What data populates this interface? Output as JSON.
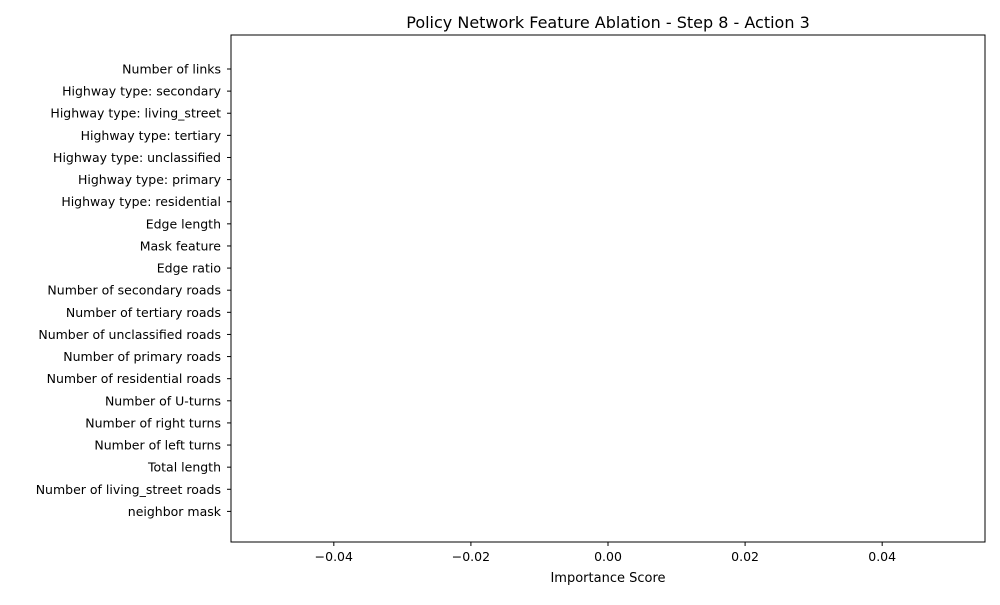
{
  "chart_data": {
    "type": "bar",
    "orientation": "horizontal",
    "title": "Policy Network Feature Ablation - Step 8 - Action 3",
    "xlabel": "Importance Score",
    "ylabel": "",
    "categories": [
      "Number of links",
      "Highway type: secondary",
      "Highway type: living_street",
      "Highway type: tertiary",
      "Highway type: unclassified",
      "Highway type: primary",
      "Highway type: residential",
      "Edge length",
      "Mask feature",
      "Edge ratio",
      "Number of secondary roads",
      "Number of tertiary roads",
      "Number of unclassified roads",
      "Number of primary roads",
      "Number of residential roads",
      "Number of U-turns",
      "Number of right turns",
      "Number of left turns",
      "Total length",
      "Number of living_street roads",
      "neighbor mask"
    ],
    "values": [
      0,
      0,
      0,
      0,
      0,
      0,
      0,
      0,
      0,
      0,
      0,
      0,
      0,
      0,
      0,
      0,
      0,
      0,
      0,
      0,
      0
    ],
    "xlim": [
      -0.055,
      0.055
    ],
    "xticks": [
      -0.04,
      -0.02,
      0.0,
      0.02,
      0.04
    ],
    "xtick_labels": [
      "−0.04",
      "−0.02",
      "0.00",
      "0.02",
      "0.04"
    ],
    "grid": false,
    "legend": "none"
  }
}
